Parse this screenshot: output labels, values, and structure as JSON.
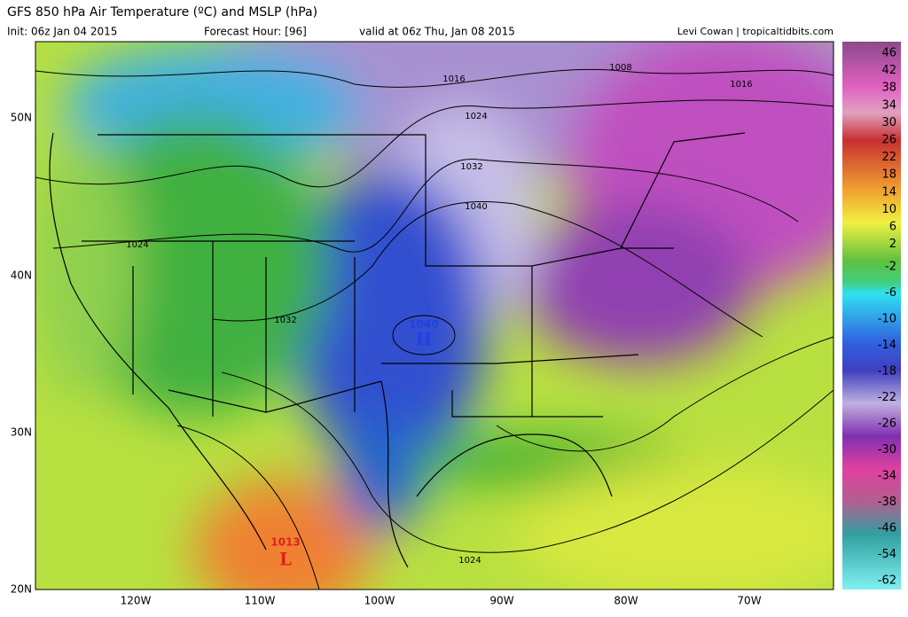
{
  "header": {
    "title": "GFS 850 hPa Air Temperature (ºC) and MSLP (hPa)",
    "init": "Init: 06z Jan 04 2015",
    "forecast_hour": "Forecast Hour: [96]",
    "valid": "valid at 06z Thu, Jan 08 2015",
    "credit": "Levi Cowan | tropicaltidbits.com"
  },
  "map": {
    "lat_labels": [
      "50N",
      "40N",
      "30N",
      "20N"
    ],
    "lon_labels": [
      "120W",
      "110W",
      "100W",
      "90W",
      "80W",
      "70W"
    ],
    "isobar_labels": [
      "1008",
      "1016",
      "1016",
      "1024",
      "1032",
      "1040",
      "1024",
      "1032",
      "1024"
    ],
    "centers": [
      {
        "symbol": "H",
        "pressure": "1040"
      },
      {
        "symbol": "L",
        "pressure": "1013"
      }
    ]
  },
  "colorbar": {
    "labels": [
      "46",
      "42",
      "38",
      "34",
      "30",
      "26",
      "22",
      "18",
      "14",
      "10",
      "6",
      "2",
      "-2",
      "-6",
      "-10",
      "-14",
      "-18",
      "-22",
      "-26",
      "-30",
      "-34",
      "-38",
      "-46",
      "-54",
      "-62"
    ]
  }
}
